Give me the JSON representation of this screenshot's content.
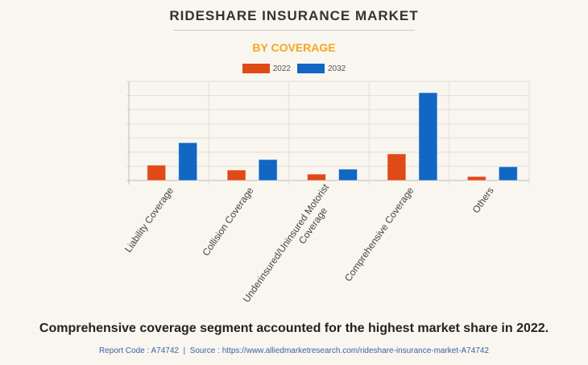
{
  "header": {
    "title": "RIDESHARE INSURANCE MARKET",
    "subtitle": "BY COVERAGE"
  },
  "chart_data": {
    "type": "bar",
    "title": "RIDESHARE INSURANCE MARKET",
    "subtitle": "BY COVERAGE",
    "categories": [
      "Liability Coverage",
      "Collision Coverage",
      "Underinsured/Uninsured Motorist Coverage",
      "Comprehensive Coverage",
      "Others"
    ],
    "series": [
      {
        "name": "2022",
        "color": "#e04a17",
        "values": [
          1.08,
          0.74,
          0.45,
          1.88,
          0.28
        ]
      },
      {
        "name": "2032",
        "color": "#1167c3",
        "values": [
          2.67,
          1.48,
          0.8,
          6.2,
          0.97
        ]
      }
    ],
    "ylim": [
      0,
      7
    ],
    "grid": true,
    "legend": "top-center",
    "xlabel": "",
    "ylabel": ""
  },
  "footer": {
    "caption": "Comprehensive coverage segment accounted for the highest market share in 2022.",
    "source": "Report Code : A74742  |  Source : https://www.alliedmarketresearch.com/rideshare-insurance-market-A74742"
  }
}
